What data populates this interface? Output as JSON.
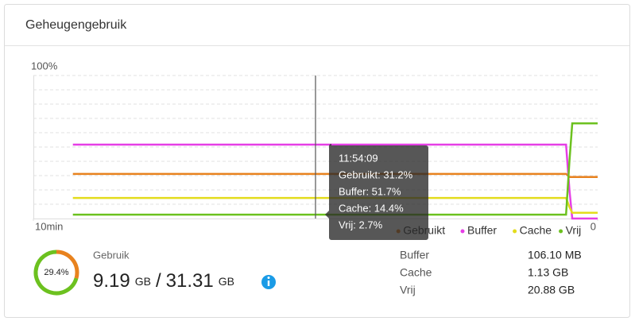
{
  "header": {
    "title": "Geheugengebruik"
  },
  "chart_data": {
    "type": "line",
    "x": [
      9.3,
      0.56,
      0.5,
      0.45,
      0
    ],
    "xlim": [
      10,
      0
    ],
    "xticks": [
      {
        "value": 10,
        "label": "10min"
      },
      0
    ],
    "ylim": [
      0,
      100
    ],
    "yticks": [
      {
        "value": 100,
        "label": "100%"
      }
    ],
    "ygrid": [
      10,
      20,
      30,
      40,
      50,
      60,
      70,
      80,
      90
    ],
    "grid": true,
    "legend": "bottom-right",
    "series": [
      {
        "name": "Gebruikt",
        "color": "#e8821e",
        "values": [
          31.2,
          31.2,
          29,
          29,
          29
        ]
      },
      {
        "name": "Buffer",
        "color": "#e63ee6",
        "values": [
          51.7,
          51.7,
          20,
          0,
          0
        ]
      },
      {
        "name": "Cache",
        "color": "#e3dc1c",
        "values": [
          14.4,
          14.4,
          8,
          4,
          4
        ]
      },
      {
        "name": "Vrij",
        "color": "#6cc11f",
        "values": [
          2.7,
          2.7,
          40,
          66.5,
          66.5
        ]
      }
    ],
    "tooltip": {
      "x": 5,
      "time": "11:54:09",
      "items": [
        "Gebruikt: 31.2%",
        "Buffer: 51.7%",
        "Cache: 14.4%",
        "Vrij: 2.7%"
      ]
    }
  },
  "summary": {
    "gauge": {
      "value": 29.4,
      "label": "29.4%",
      "colors": [
        "#e8821e",
        "#6cc11f"
      ]
    },
    "label": "Gebruik",
    "used": "9.19",
    "used_unit": "GB",
    "separator": "/",
    "total": "31.31",
    "total_unit": "GB",
    "rows": [
      [
        "Buffer",
        "106.10 MB"
      ],
      [
        "Cache",
        "1.13 GB"
      ],
      [
        "Vrij",
        "20.88 GB"
      ]
    ]
  }
}
